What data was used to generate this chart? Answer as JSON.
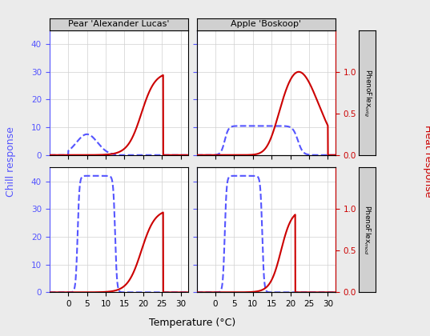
{
  "col_titles": [
    "Pear 'Alexander Lucas'",
    "Apple 'Boskoop'"
  ],
  "row_label_top": "PhenoFlex$_{orig}$",
  "row_label_bot": "PhenoFlex$_{mod}$",
  "xlabel": "Temperature (°C)",
  "ylabel_left": "Chill response",
  "ylabel_right": "Heat response",
  "xlim": [
    -5,
    32
  ],
  "ylim_left": [
    0,
    45
  ],
  "ylim_right": [
    0.0,
    1.5
  ],
  "xticks": [
    0,
    5,
    10,
    15,
    20,
    25,
    30
  ],
  "yticks_left": [
    0,
    10,
    20,
    30,
    40
  ],
  "yticks_right": [
    0.0,
    0.5,
    1.0
  ],
  "background_color": "#ebebeb",
  "panel_bg": "#ffffff",
  "grid_color": "#d0d0d0",
  "chill_color": "#5555ff",
  "heat_color": "#cc0000",
  "strip_bg": "#d0d0d0",
  "strip_text_color": "#000000",
  "heat_scale": 30.0,
  "heat_ylim_top": 1.25
}
